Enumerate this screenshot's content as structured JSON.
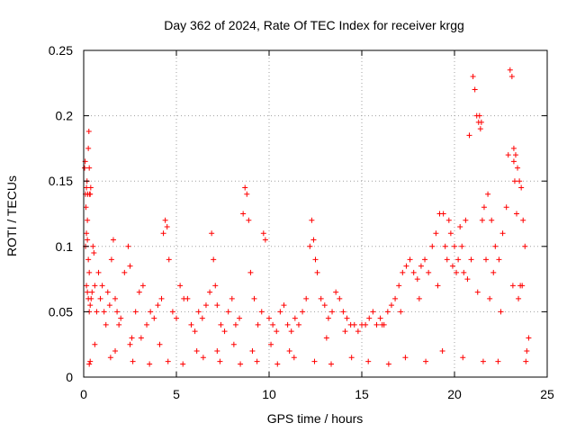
{
  "chart_data": {
    "type": "scatter",
    "title": "Day 362 of 2024, Rate Of TEC Index for receiver krgg",
    "xlabel": "GPS time / hours",
    "ylabel": "ROTI / TECUs",
    "xlim": [
      0,
      25
    ],
    "ylim": [
      0,
      0.25
    ],
    "xticks": [
      0,
      5,
      10,
      15,
      20,
      25
    ],
    "yticks": [
      0,
      0.05,
      0.1,
      0.15,
      0.2,
      0.25
    ],
    "xtick_labels": [
      "0",
      "5",
      "10",
      "15",
      "20",
      "25"
    ],
    "ytick_labels": [
      "0",
      "0.05",
      "0.1",
      "0.15",
      "0.2",
      "0.25"
    ],
    "grid": true,
    "marker": "plus",
    "color": "#ff0000",
    "series": [
      {
        "x": [
          0.05,
          0.08,
          0.1,
          0.12,
          0.15,
          0.18,
          0.2,
          0.22,
          0.25,
          0.28,
          0.3,
          0.32,
          0.35,
          0.38,
          0.1,
          0.15,
          0.2,
          0.25,
          0.3,
          0.15,
          0.2,
          0.25,
          0.3,
          0.35,
          0.4,
          0.45,
          0.5,
          0.55,
          0.6,
          0.7,
          0.8,
          0.9,
          1.0,
          1.1,
          1.2,
          1.3,
          1.4,
          1.5,
          1.6,
          1.7,
          1.8,
          1.9,
          2.0,
          2.2,
          2.4,
          2.5,
          2.6,
          2.8,
          3.0,
          3.2,
          3.4,
          3.6,
          3.8,
          4.0,
          4.2,
          4.3,
          4.4,
          4.5,
          4.6,
          4.8,
          5.0,
          5.2,
          5.4,
          5.6,
          5.8,
          6.0,
          6.2,
          6.4,
          6.6,
          6.8,
          6.9,
          7.0,
          7.1,
          7.2,
          7.4,
          7.6,
          7.8,
          8.0,
          8.2,
          8.4,
          8.6,
          8.7,
          8.8,
          8.9,
          9.0,
          9.2,
          9.4,
          9.6,
          9.7,
          9.8,
          10.0,
          10.2,
          10.4,
          10.6,
          10.8,
          11.0,
          11.2,
          11.4,
          11.6,
          11.8,
          12.0,
          12.2,
          12.3,
          12.4,
          12.5,
          12.6,
          12.8,
          13.0,
          13.2,
          13.4,
          13.6,
          13.8,
          14.0,
          14.2,
          14.4,
          14.6,
          14.8,
          15.0,
          15.2,
          15.4,
          15.6,
          15.8,
          16.0,
          16.2,
          16.4,
          16.6,
          16.8,
          17.0,
          17.2,
          17.4,
          17.6,
          17.8,
          18.0,
          18.2,
          18.4,
          18.6,
          18.8,
          19.0,
          19.2,
          19.4,
          19.5,
          19.6,
          19.7,
          19.8,
          20.0,
          20.2,
          20.3,
          20.4,
          20.6,
          20.8,
          21.0,
          21.1,
          21.2,
          21.3,
          21.4,
          21.5,
          21.6,
          21.8,
          22.0,
          22.2,
          22.4,
          22.6,
          22.8,
          22.9,
          23.0,
          23.1,
          23.2,
          23.3,
          23.4,
          23.5,
          23.6,
          23.7,
          23.8,
          23.9,
          24.0,
          0.6,
          1.7,
          2.5,
          3.1,
          4.1,
          6.1,
          7.2,
          8.1,
          9.1,
          10.1,
          11.1,
          13.1,
          14.1,
          16.1,
          17.1,
          18.1,
          19.1,
          20.1,
          21.7,
          22.1,
          23.15,
          23.45,
          23.65,
          20.5,
          20.9,
          21.9,
          22.5,
          23.55,
          19.9,
          20.7,
          21.25,
          21.35,
          21.45,
          23.2,
          23.25,
          23.35,
          0.3,
          0.35,
          1.45,
          2.65,
          3.55,
          4.55,
          5.35,
          6.45,
          7.35,
          8.45,
          9.35,
          10.45,
          11.35,
          12.45,
          13.35,
          14.45,
          15.35,
          16.45,
          17.35,
          18.45,
          19.35,
          20.45,
          21.55,
          22.35,
          23.85
        ],
        "y": [
          0.16,
          0.165,
          0.14,
          0.13,
          0.145,
          0.15,
          0.12,
          0.14,
          0.175,
          0.188,
          0.16,
          0.14,
          0.14,
          0.145,
          0.1,
          0.11,
          0.105,
          0.09,
          0.08,
          0.07,
          0.065,
          0.06,
          0.05,
          0.055,
          0.06,
          0.065,
          0.1,
          0.095,
          0.07,
          0.05,
          0.08,
          0.06,
          0.07,
          0.05,
          0.04,
          0.065,
          0.055,
          0.09,
          0.105,
          0.06,
          0.05,
          0.04,
          0.045,
          0.08,
          0.1,
          0.085,
          0.03,
          0.05,
          0.065,
          0.07,
          0.04,
          0.05,
          0.045,
          0.055,
          0.06,
          0.11,
          0.12,
          0.115,
          0.09,
          0.05,
          0.045,
          0.07,
          0.06,
          0.06,
          0.04,
          0.035,
          0.05,
          0.045,
          0.055,
          0.065,
          0.11,
          0.09,
          0.07,
          0.055,
          0.04,
          0.035,
          0.05,
          0.06,
          0.04,
          0.045,
          0.125,
          0.145,
          0.14,
          0.12,
          0.08,
          0.06,
          0.04,
          0.05,
          0.11,
          0.105,
          0.045,
          0.04,
          0.035,
          0.05,
          0.055,
          0.04,
          0.035,
          0.045,
          0.04,
          0.05,
          0.06,
          0.1,
          0.12,
          0.105,
          0.09,
          0.08,
          0.06,
          0.055,
          0.045,
          0.05,
          0.065,
          0.06,
          0.05,
          0.045,
          0.04,
          0.04,
          0.035,
          0.04,
          0.04,
          0.045,
          0.05,
          0.04,
          0.045,
          0.04,
          0.05,
          0.055,
          0.06,
          0.07,
          0.08,
          0.085,
          0.09,
          0.08,
          0.075,
          0.085,
          0.09,
          0.08,
          0.1,
          0.11,
          0.125,
          0.125,
          0.1,
          0.09,
          0.12,
          0.11,
          0.1,
          0.09,
          0.115,
          0.1,
          0.12,
          0.185,
          0.23,
          0.22,
          0.2,
          0.195,
          0.19,
          0.12,
          0.13,
          0.14,
          0.12,
          0.1,
          0.09,
          0.11,
          0.13,
          0.17,
          0.235,
          0.23,
          0.175,
          0.17,
          0.16,
          0.15,
          0.145,
          0.12,
          0.1,
          0.02,
          0.03,
          0.025,
          0.02,
          0.025,
          0.03,
          0.025,
          0.02,
          0.02,
          0.025,
          0.02,
          0.025,
          0.02,
          0.03,
          0.035,
          0.04,
          0.05,
          0.06,
          0.07,
          0.08,
          0.09,
          0.08,
          0.07,
          0.06,
          0.07,
          0.08,
          0.09,
          0.06,
          0.05,
          0.07,
          0.085,
          0.075,
          0.065,
          0.2,
          0.195,
          0.165,
          0.15,
          0.125,
          0.01,
          0.012,
          0.015,
          0.012,
          0.01,
          0.012,
          0.01,
          0.015,
          0.012,
          0.01,
          0.012,
          0.01,
          0.015,
          0.012,
          0.01,
          0.015,
          0.012,
          0.01,
          0.015,
          0.012,
          0.02,
          0.015,
          0.012,
          0.012,
          0.012
        ]
      }
    ]
  }
}
